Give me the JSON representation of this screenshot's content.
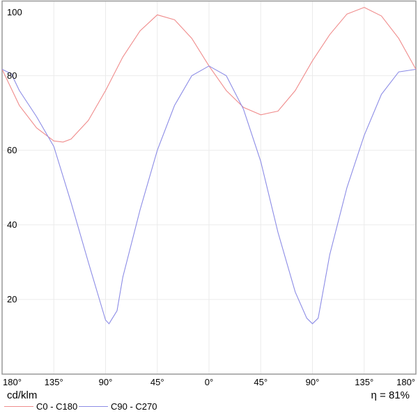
{
  "chart_data": {
    "type": "line",
    "title": "",
    "ylabel": "cd/klm",
    "xlabel": "",
    "xlim": [
      -180,
      180
    ],
    "ylim": [
      0,
      100
    ],
    "grid": true,
    "x_ticks": [
      -180,
      -135,
      -90,
      -45,
      0,
      45,
      90,
      135,
      180
    ],
    "x_tick_labels": [
      "180°",
      "135°",
      "90°",
      "45°",
      "0°",
      "45°",
      "90°",
      "135°",
      "180°"
    ],
    "y_ticks": [
      20,
      40,
      60,
      80,
      100
    ],
    "y_tick_labels": [
      "20",
      "40",
      "60",
      "80",
      "100"
    ],
    "annotation": "η = 81%",
    "legend_position": "bottom-left",
    "series": [
      {
        "name": "C0 - C180",
        "color": "#f08c8c",
        "x": [
          -180,
          -165,
          -150,
          -135,
          -127,
          -120,
          -105,
          -90,
          -75,
          -60,
          -45,
          -30,
          -15,
          0,
          15,
          30,
          45,
          60,
          75,
          90,
          105,
          120,
          135,
          150,
          165,
          180
        ],
        "y": [
          81.7,
          72,
          66,
          62.5,
          62.2,
          63,
          68,
          76,
          85,
          92,
          96.3,
          95,
          90,
          82.6,
          76,
          71.5,
          69.5,
          70.5,
          76,
          84,
          91,
          96.5,
          98.3,
          96,
          90,
          81.7
        ]
      },
      {
        "name": "C90 - C270",
        "color": "#8c8ce6",
        "x": [
          -180,
          -172,
          -165,
          -150,
          -135,
          -120,
          -105,
          -90,
          -87,
          -80,
          -75,
          -60,
          -45,
          -30,
          -15,
          0,
          15,
          30,
          45,
          60,
          75,
          85,
          90,
          95,
          105,
          120,
          135,
          150,
          165,
          180
        ],
        "y": [
          81.7,
          80.5,
          76,
          69,
          61,
          46,
          30,
          14.5,
          13.5,
          17,
          26,
          44,
          60,
          72,
          80,
          82.6,
          80,
          71,
          57,
          38,
          22,
          15,
          13.5,
          15,
          32,
          50,
          64,
          75,
          81,
          81.7
        ]
      }
    ]
  }
}
